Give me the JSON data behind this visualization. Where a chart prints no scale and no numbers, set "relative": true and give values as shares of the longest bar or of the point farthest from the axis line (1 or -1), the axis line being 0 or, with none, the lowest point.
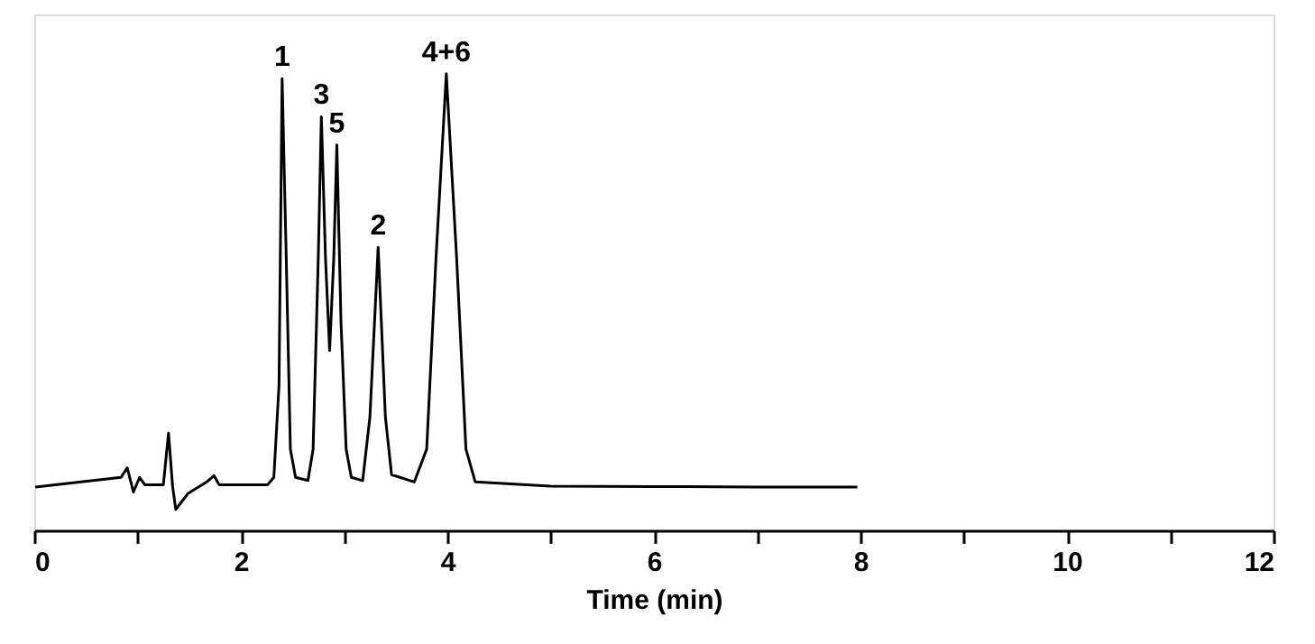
{
  "chart_data": {
    "type": "line",
    "relative": true,
    "xlabel": "Time (min)",
    "xlim": [
      0,
      12
    ],
    "xticks": [
      0,
      {
        "value": 1,
        "label": null
      },
      2,
      {
        "value": 3,
        "label": null
      },
      4,
      {
        "value": 5,
        "label": null
      },
      6,
      {
        "value": 7,
        "label": null
      },
      8,
      {
        "value": 9,
        "label": null
      },
      10,
      {
        "value": 11,
        "label": null
      },
      12
    ],
    "grid": false,
    "marker": "none",
    "line_style": "solid",
    "series": [
      {
        "color": "#000000",
        "x": [
          0.01,
          0.84,
          0.9,
          0.96,
          1.02,
          1.07,
          1.25,
          1.3,
          1.34,
          1.37,
          1.49,
          1.67,
          1.74,
          1.79,
          2.26,
          2.32,
          2.37,
          2.4,
          2.44,
          2.48,
          2.53,
          2.65,
          2.7,
          2.75,
          2.78,
          2.82,
          2.86,
          2.9,
          2.93,
          2.97,
          3.02,
          3.07,
          3.18,
          3.25,
          3.33,
          3.4,
          3.46,
          3.68,
          3.8,
          3.89,
          3.99,
          4.09,
          4.18,
          4.27,
          5.0,
          6.0,
          7.0,
          7.97
        ],
        "values": [
          0.095,
          0.116,
          0.137,
          0.084,
          0.116,
          0.1,
          0.1,
          0.213,
          0.095,
          0.046,
          0.081,
          0.106,
          0.12,
          0.1,
          0.1,
          0.116,
          0.318,
          0.989,
          0.596,
          0.178,
          0.116,
          0.109,
          0.178,
          0.596,
          0.906,
          0.596,
          0.394,
          0.596,
          0.844,
          0.457,
          0.178,
          0.116,
          0.109,
          0.248,
          0.62,
          0.248,
          0.122,
          0.106,
          0.178,
          0.596,
          1.0,
          0.596,
          0.178,
          0.106,
          0.097,
          0.096,
          0.095,
          0.095
        ]
      }
    ],
    "annotations": [
      {
        "text": "1",
        "x": 2.4,
        "y": 0.989
      },
      {
        "text": "3",
        "x": 2.78,
        "y": 0.906
      },
      {
        "text": "5",
        "x": 2.93,
        "y": 0.844
      },
      {
        "text": "2",
        "x": 3.33,
        "y": 0.62
      },
      {
        "text": "4+6",
        "x": 3.99,
        "y": 1.0
      }
    ]
  }
}
